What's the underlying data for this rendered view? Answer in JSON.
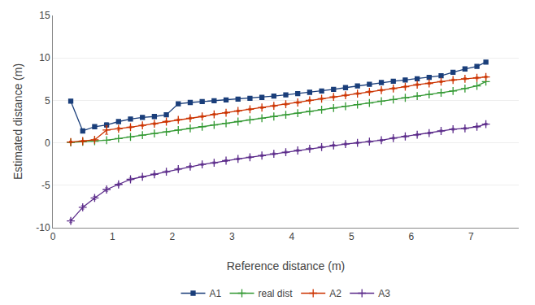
{
  "chart_data": {
    "type": "line",
    "title": "",
    "xlabel": "Reference distance (m)",
    "ylabel": "Estimated distance (m)",
    "x": [
      0.3,
      0.5,
      0.7,
      0.9,
      1.1,
      1.3,
      1.5,
      1.7,
      1.9,
      2.1,
      2.3,
      2.5,
      2.7,
      2.9,
      3.1,
      3.3,
      3.5,
      3.7,
      3.9,
      4.1,
      4.3,
      4.5,
      4.7,
      4.9,
      5.1,
      5.3,
      5.5,
      5.7,
      5.9,
      6.1,
      6.3,
      6.5,
      6.7,
      6.9,
      7.1,
      7.25
    ],
    "xlim": [
      0,
      7.8
    ],
    "ylim": [
      -10,
      15
    ],
    "xticks": [
      0,
      1,
      2,
      3,
      4,
      5,
      6,
      7
    ],
    "yticks": [
      -10,
      -5,
      0,
      5,
      10,
      15
    ],
    "grid": "y",
    "legend": "bottom",
    "series": [
      {
        "name": "A1",
        "color": "#1a3e7a",
        "marker": "square",
        "values": [
          4.9,
          1.4,
          1.9,
          2.1,
          2.5,
          2.8,
          3.0,
          3.1,
          3.3,
          4.6,
          4.75,
          4.85,
          4.95,
          5.05,
          5.15,
          5.25,
          5.35,
          5.5,
          5.65,
          5.8,
          5.95,
          6.1,
          6.3,
          6.5,
          6.7,
          6.9,
          7.1,
          7.25,
          7.4,
          7.55,
          7.7,
          7.9,
          8.3,
          8.7,
          9.0,
          9.5
        ],
        "yerr": [
          0.15,
          0.15,
          0.15,
          0.25,
          0.15,
          0.12,
          0.12,
          0.12,
          0.12,
          0.12,
          0.1,
          0.1,
          0.1,
          0.1,
          0.1,
          0.1,
          0.1,
          0.1,
          0.1,
          0.1,
          0.1,
          0.1,
          0.1,
          0.1,
          0.1,
          0.1,
          0.1,
          0.1,
          0.1,
          0.1,
          0.1,
          0.1,
          0.1,
          0.1,
          0.1,
          0.1
        ]
      },
      {
        "name": "real dist",
        "color": "#339933",
        "marker": "plus",
        "values": [
          0.05,
          0.12,
          0.2,
          0.3,
          0.5,
          0.7,
          0.9,
          1.1,
          1.3,
          1.5,
          1.7,
          1.9,
          2.1,
          2.3,
          2.5,
          2.7,
          2.9,
          3.1,
          3.3,
          3.5,
          3.7,
          3.9,
          4.1,
          4.3,
          4.5,
          4.7,
          4.9,
          5.1,
          5.3,
          5.5,
          5.7,
          5.9,
          6.1,
          6.4,
          6.7,
          7.2
        ]
      },
      {
        "name": "A2",
        "color": "#cc3300",
        "marker": "plus",
        "values": [
          0.1,
          0.2,
          0.35,
          1.5,
          1.65,
          1.85,
          2.05,
          2.25,
          2.5,
          2.7,
          2.9,
          3.1,
          3.35,
          3.55,
          3.75,
          3.95,
          4.15,
          4.35,
          4.55,
          4.75,
          5.0,
          5.2,
          5.4,
          5.6,
          5.8,
          6.0,
          6.2,
          6.4,
          6.6,
          6.85,
          7.0,
          7.2,
          7.4,
          7.55,
          7.65,
          7.75
        ],
        "yerr": [
          0.1,
          0.1,
          0.1,
          0.5,
          0.15,
          0.1,
          0.1,
          0.1,
          0.1,
          0.1,
          0.1,
          0.1,
          0.1,
          0.1,
          0.1,
          0.1,
          0.1,
          0.1,
          0.1,
          0.1,
          0.1,
          0.1,
          0.1,
          0.1,
          0.1,
          0.1,
          0.1,
          0.1,
          0.1,
          0.1,
          0.1,
          0.1,
          0.1,
          0.1,
          0.1,
          0.1
        ]
      },
      {
        "name": "A3",
        "color": "#5b2b8a",
        "marker": "plus",
        "values": [
          -9.2,
          -7.6,
          -6.5,
          -5.5,
          -4.9,
          -4.3,
          -4.0,
          -3.7,
          -3.4,
          -3.1,
          -2.8,
          -2.55,
          -2.35,
          -2.1,
          -1.9,
          -1.7,
          -1.5,
          -1.3,
          -1.1,
          -0.9,
          -0.7,
          -0.5,
          -0.3,
          -0.15,
          0.0,
          0.15,
          0.3,
          0.55,
          0.75,
          0.95,
          1.15,
          1.4,
          1.6,
          1.7,
          1.9,
          2.2
        ],
        "yerr": [
          0.2,
          0.2,
          0.2,
          0.2,
          0.15,
          0.15,
          0.1,
          0.1,
          0.1,
          0.1,
          0.1,
          0.1,
          0.1,
          0.1,
          0.1,
          0.1,
          0.1,
          0.1,
          0.1,
          0.1,
          0.1,
          0.1,
          0.1,
          0.1,
          0.1,
          0.1,
          0.1,
          0.1,
          0.1,
          0.1,
          0.1,
          0.1,
          0.1,
          0.1,
          0.1,
          0.1
        ]
      }
    ]
  }
}
